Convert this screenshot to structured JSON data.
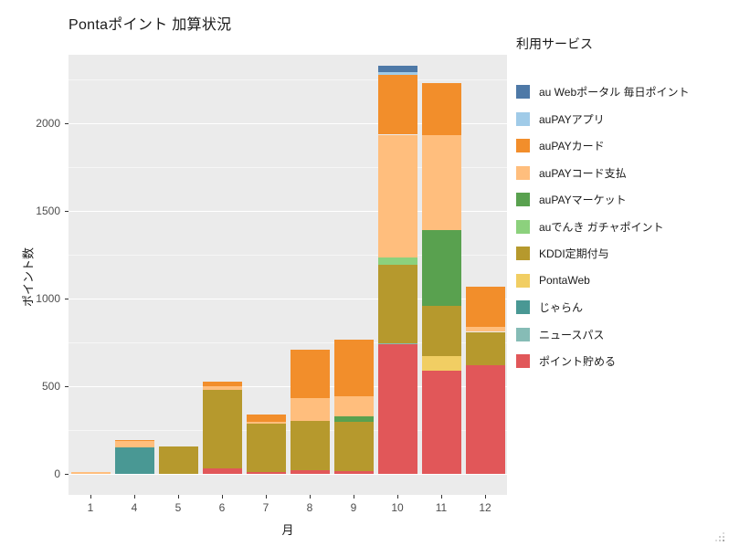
{
  "title": "Pontaポイント 加算状況",
  "legend": {
    "title": "利用サービス",
    "items": [
      {
        "label": "au Webポータル 毎日ポイント",
        "color": "#4E79A7"
      },
      {
        "label": "auPAYアプリ",
        "color": "#A0CBE8"
      },
      {
        "label": "auPAYカード",
        "color": "#F28E2B"
      },
      {
        "label": "auPAYコード支払",
        "color": "#FFBE7D"
      },
      {
        "label": "auPAYマーケット",
        "color": "#59A14F"
      },
      {
        "label": "auでんき ガチャポイント",
        "color": "#8CD17D"
      },
      {
        "label": "KDDI定期付与",
        "color": "#B6992D"
      },
      {
        "label": "PontaWeb",
        "color": "#F1CE63"
      },
      {
        "label": "じゃらん",
        "color": "#499894"
      },
      {
        "label": "ニュースパス",
        "color": "#86BCB6"
      },
      {
        "label": "ポイント貯める",
        "color": "#E15759"
      }
    ]
  },
  "chart_data": {
    "type": "bar",
    "stacked": true,
    "title": "Pontaポイント 加算状況",
    "xlabel": "月",
    "ylabel": "ポイント数",
    "legend_title": "利用サービス",
    "legend_position": "right",
    "grid": true,
    "panel_bg": "#EBEBEB",
    "grid_color": "#FFFFFF",
    "categories": [
      "1",
      "4",
      "5",
      "6",
      "7",
      "8",
      "9",
      "10",
      "11",
      "12"
    ],
    "yticks": [
      0,
      500,
      1000,
      1500,
      2000
    ],
    "yticks_minor": [
      250,
      750,
      1250,
      1750,
      2250
    ],
    "ylim": [
      0,
      2390
    ],
    "series": [
      {
        "name": "au Webポータル 毎日ポイント",
        "color": "#4E79A7",
        "values": [
          0,
          0,
          0,
          0,
          0,
          0,
          0,
          40,
          0,
          0
        ]
      },
      {
        "name": "auPAYアプリ",
        "color": "#A0CBE8",
        "values": [
          0,
          0,
          0,
          0,
          0,
          0,
          0,
          15,
          0,
          0
        ]
      },
      {
        "name": "auPAYカード",
        "color": "#F28E2B",
        "values": [
          0,
          10,
          0,
          25,
          45,
          280,
          320,
          340,
          300,
          230
        ]
      },
      {
        "name": "auPAYコード支払",
        "color": "#FFBE7D",
        "values": [
          10,
          35,
          0,
          20,
          10,
          130,
          115,
          700,
          540,
          30
        ]
      },
      {
        "name": "auPAYマーケット",
        "color": "#59A14F",
        "values": [
          0,
          0,
          0,
          0,
          0,
          0,
          35,
          0,
          430,
          0
        ]
      },
      {
        "name": "auでんき ガチャポイント",
        "color": "#8CD17D",
        "values": [
          0,
          0,
          0,
          0,
          0,
          0,
          0,
          40,
          0,
          0
        ]
      },
      {
        "name": "KDDI定期付与",
        "color": "#B6992D",
        "values": [
          0,
          0,
          155,
          450,
          275,
          280,
          280,
          450,
          290,
          190
        ]
      },
      {
        "name": "PontaWeb",
        "color": "#F1CE63",
        "values": [
          0,
          0,
          0,
          0,
          0,
          0,
          0,
          0,
          80,
          0
        ]
      },
      {
        "name": "じゃらん",
        "color": "#499894",
        "values": [
          0,
          150,
          0,
          0,
          0,
          0,
          0,
          0,
          0,
          0
        ]
      },
      {
        "name": "ニュースパス",
        "color": "#86BCB6",
        "values": [
          0,
          0,
          0,
          0,
          0,
          0,
          0,
          5,
          0,
          0
        ]
      },
      {
        "name": "ポイント貯める",
        "color": "#E15759",
        "values": [
          0,
          0,
          0,
          30,
          10,
          20,
          15,
          740,
          590,
          620
        ]
      }
    ]
  }
}
